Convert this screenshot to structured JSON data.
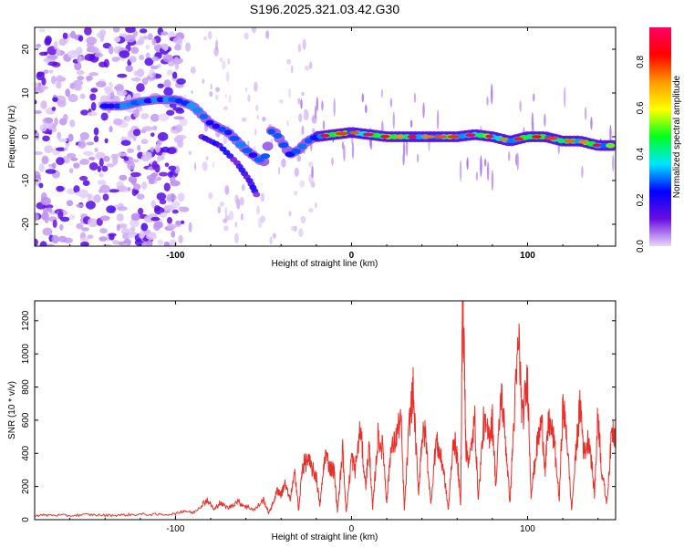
{
  "title": "S196.2025.321.03.42.G30",
  "chart_data": [
    {
      "type": "heatmap",
      "name": "spectrogram",
      "xlabel": "Height of straight line (km)",
      "ylabel": "Frequency (Hz)",
      "xlim": [
        -180,
        150
      ],
      "ylim": [
        -25,
        25
      ],
      "xticks": [
        -100,
        0,
        100
      ],
      "xtick_labels": [
        "-100",
        "0",
        "100"
      ],
      "yticks": [
        -20,
        -10,
        0,
        10,
        20
      ],
      "ytick_labels": [
        "-20",
        "-10",
        "0",
        "10",
        "20"
      ],
      "ridge_track": {
        "x": [
          -140,
          -130,
          -120,
          -110,
          -100,
          -90,
          -80,
          -70,
          -60,
          -50,
          -45,
          -40,
          -35,
          -30,
          -25,
          -20,
          -10,
          0,
          10,
          20,
          30,
          40,
          50,
          60,
          70,
          80,
          90,
          100,
          110,
          120,
          130,
          140,
          150
        ],
        "y": [
          7,
          7,
          8,
          8.5,
          8.5,
          7,
          3,
          1,
          -3,
          -6,
          2,
          -1,
          -4,
          -3,
          -1,
          0,
          0.5,
          1,
          0.5,
          0,
          0,
          0,
          0,
          0,
          0.5,
          0,
          -1,
          0,
          0,
          -1,
          -1,
          -2,
          -2
        ]
      },
      "colorbar": {
        "label": "Normalized spectral amplitude",
        "range": [
          0,
          0.95
        ],
        "ticks": [
          0.0,
          0.2,
          0.4,
          0.6,
          0.8
        ],
        "tick_labels": [
          "0.0",
          "0.2",
          "0.4",
          "0.6",
          "0.8"
        ],
        "colors": [
          "#e8d8f8",
          "#6a0de0",
          "#0000ff",
          "#00e5ff",
          "#00ff20",
          "#ffff00",
          "#ff9900",
          "#ff0000",
          "#ff0066"
        ]
      }
    },
    {
      "type": "line",
      "name": "snr",
      "xlabel": "Height of straight line (km)",
      "ylabel": "SNR (10 * v/v)",
      "xlim": [
        -180,
        150
      ],
      "ylim": [
        0,
        1320
      ],
      "xticks": [
        -100,
        0,
        100
      ],
      "xtick_labels": [
        "-100",
        "0",
        "100"
      ],
      "yticks": [
        0,
        200,
        400,
        600,
        800,
        1000,
        1200
      ],
      "ytick_labels": [
        "0",
        "200",
        "400",
        "600",
        "800",
        "1000",
        "1200"
      ],
      "color": "#e8302a",
      "series": [
        {
          "name": "SNR",
          "x": [
            -180,
            -170,
            -160,
            -150,
            -140,
            -130,
            -120,
            -110,
            -100,
            -95,
            -90,
            -85,
            -82,
            -78,
            -75,
            -70,
            -65,
            -60,
            -55,
            -50,
            -47,
            -45,
            -42,
            -40,
            -38,
            -35,
            -32,
            -30,
            -28,
            -25,
            -22,
            -20,
            -18,
            -15,
            -12,
            -10,
            -8,
            -5,
            -3,
            0,
            2,
            5,
            8,
            10,
            12,
            15,
            18,
            20,
            22,
            25,
            28,
            30,
            33,
            35,
            38,
            40,
            42,
            45,
            48,
            50,
            52,
            55,
            58,
            60,
            62,
            63,
            64,
            65,
            67,
            70,
            72,
            75,
            78,
            80,
            82,
            85,
            88,
            90,
            92,
            95,
            97,
            100,
            102,
            105,
            108,
            110,
            112,
            115,
            118,
            120,
            122,
            125,
            128,
            130,
            132,
            135,
            138,
            140,
            142,
            145,
            148,
            150
          ],
          "y": [
            25,
            28,
            24,
            30,
            26,
            28,
            32,
            30,
            35,
            55,
            40,
            90,
            120,
            60,
            100,
            70,
            110,
            80,
            60,
            120,
            40,
            90,
            180,
            150,
            220,
            120,
            280,
            50,
            320,
            360,
            300,
            260,
            80,
            400,
            310,
            300,
            50,
            420,
            40,
            380,
            300,
            550,
            200,
            450,
            60,
            500,
            420,
            100,
            400,
            480,
            620,
            60,
            600,
            780,
            150,
            500,
            520,
            90,
            480,
            400,
            320,
            60,
            500,
            380,
            80,
            1300,
            1000,
            420,
            350,
            600,
            120,
            580,
            500,
            600,
            200,
            780,
            400,
            100,
            550,
            1100,
            600,
            850,
            150,
            420,
            600,
            300,
            600,
            480,
            120,
            680,
            550,
            60,
            480,
            700,
            400,
            500,
            150,
            650,
            300,
            100,
            550,
            520
          ]
        }
      ]
    }
  ]
}
